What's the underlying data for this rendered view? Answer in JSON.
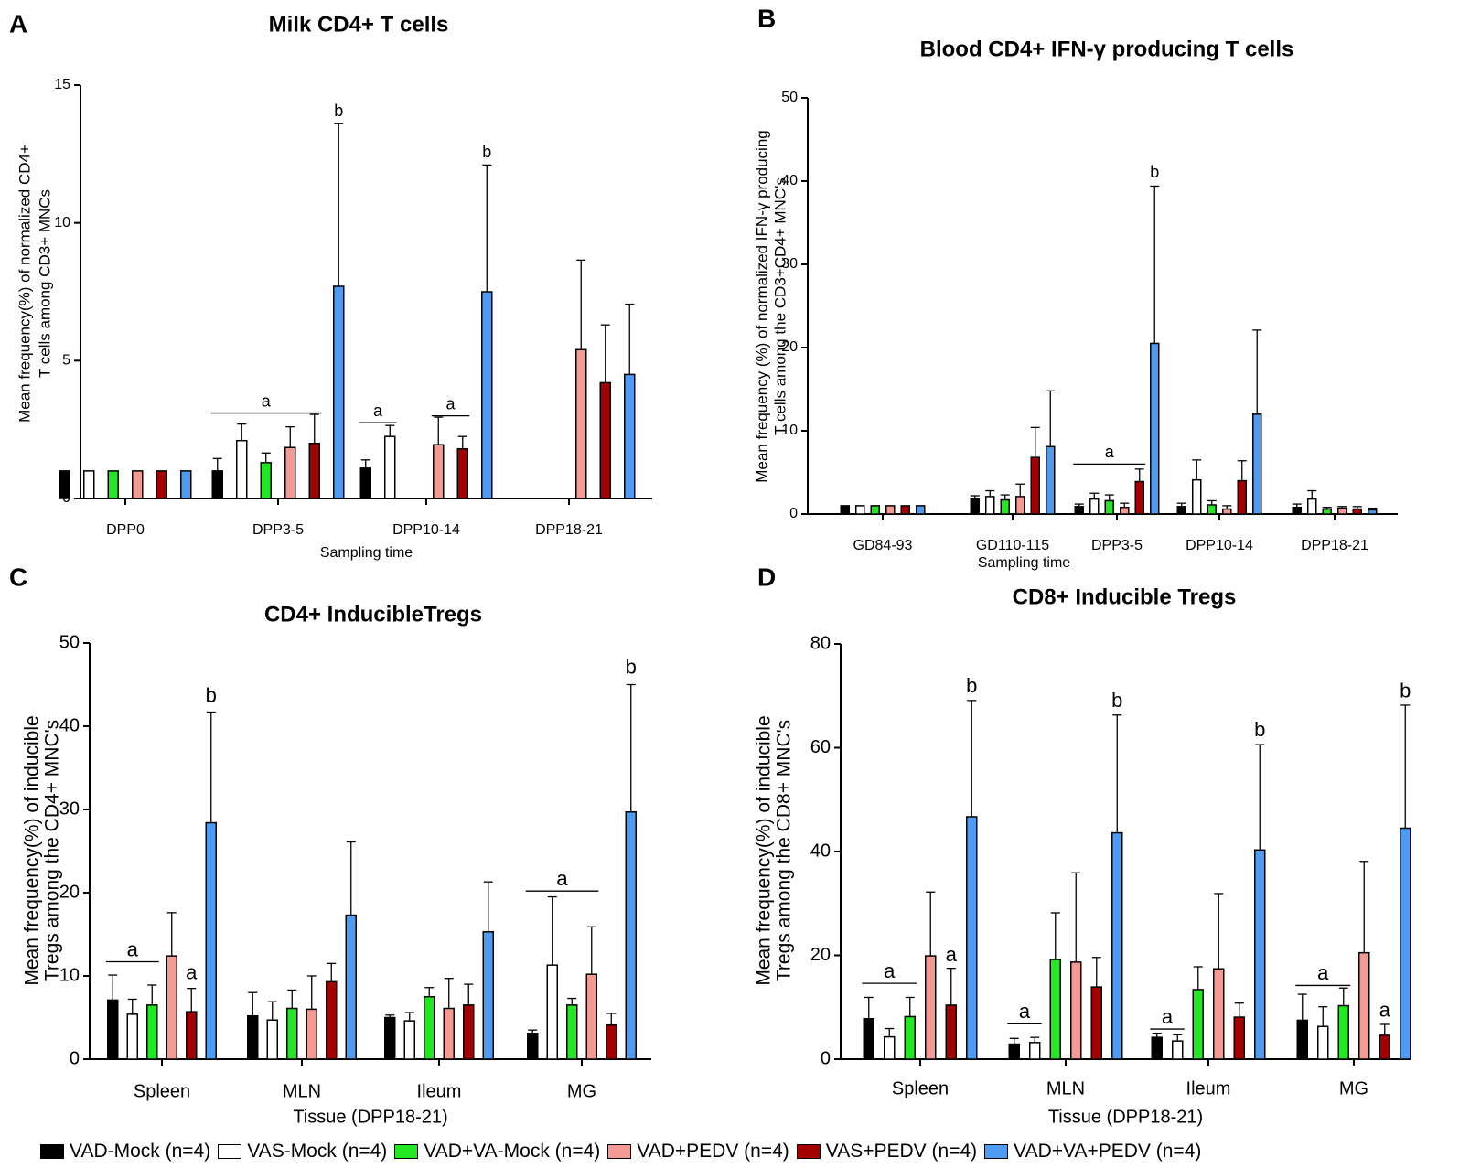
{
  "colors": {
    "VAD-Mock": "#000000",
    "VAS-Mock": "#ffffff",
    "VAD+VA-Mock": "#22e822",
    "VAD+PEDV": "#f49a94",
    "VAS+PEDV": "#a30000",
    "VAD+VA+PEDV": "#4d9bf2"
  },
  "legend": {
    "items": [
      {
        "label": "VAD-Mock (n=4)",
        "color": "#000000"
      },
      {
        "label": "VAS-Mock (n=4)",
        "color": "#ffffff"
      },
      {
        "label": "VAD+VA-Mock (n=4)",
        "color": "#22e822"
      },
      {
        "label": "VAD+PEDV (n=4)",
        "color": "#f49a94"
      },
      {
        "label": "VAS+PEDV (n=4)",
        "color": "#a30000"
      },
      {
        "label": "VAD+VA+PEDV (n=4)",
        "color": "#4d9bf2"
      }
    ]
  },
  "chart_data": [
    {
      "panel": "A",
      "type": "bar",
      "title": "Milk CD4+ T cells",
      "xlabel": "Sampling time",
      "ylabel": [
        "Mean frequency(%) of normalized CD4+",
        "T cells among CD3+ MNCs"
      ],
      "ylim": [
        0,
        15
      ],
      "yticks": [
        0,
        5,
        10,
        15
      ],
      "ytick_labels": [
        "0",
        "5",
        "10",
        "15"
      ],
      "categories": [
        "DPP0",
        "DPP3-5",
        "DPP10-14",
        "DPP18-21"
      ],
      "series": [
        {
          "name": "VAD-Mock",
          "values": [
            1.0,
            1.0,
            1.1,
            null
          ],
          "errors": [
            0,
            0.45,
            0.3,
            null
          ]
        },
        {
          "name": "VAS-Mock",
          "values": [
            1.0,
            2.1,
            2.25,
            null
          ],
          "errors": [
            0,
            0.6,
            0.4,
            null
          ]
        },
        {
          "name": "VAD+VA-Mock",
          "values": [
            1.0,
            1.3,
            null,
            null
          ],
          "errors": [
            0,
            0.35,
            null,
            null
          ]
        },
        {
          "name": "VAD+PEDV",
          "values": [
            1.0,
            1.85,
            1.95,
            5.4
          ],
          "errors": [
            0,
            0.75,
            1.0,
            3.25
          ]
        },
        {
          "name": "VAS+PEDV",
          "values": [
            1.0,
            2.0,
            1.8,
            4.2
          ],
          "errors": [
            0,
            1.05,
            0.45,
            2.1
          ]
        },
        {
          "name": "VAD+VA+PEDV",
          "values": [
            1.0,
            7.7,
            7.5,
            4.5
          ],
          "errors": [
            0,
            5.9,
            4.6,
            2.55
          ]
        }
      ],
      "annotations": [
        {
          "text": "b",
          "category": 1,
          "bar": 5,
          "y": 13.9
        },
        {
          "text": "b",
          "category": 2,
          "bar": 5,
          "y": 12.4
        },
        {
          "text": "a",
          "y": 3.1,
          "from": [
            1,
            0
          ],
          "to": [
            1,
            4
          ]
        },
        {
          "text": "a",
          "y": 2.75,
          "from": [
            2,
            0
          ],
          "to": [
            2,
            1
          ]
        },
        {
          "text": "a",
          "y": 3.0,
          "from": [
            2,
            3
          ],
          "to": [
            2,
            4
          ]
        }
      ]
    },
    {
      "panel": "B",
      "type": "bar",
      "title": "Blood CD4+ IFN-γ producing T cells",
      "xlabel": "Sampling time",
      "ylabel": [
        "Mean frequency (%) of normalized IFN-γ producing",
        "T cells among the CD3+CD4+ MNC's"
      ],
      "ylim": [
        0,
        50
      ],
      "yticks": [
        0,
        10,
        20,
        30,
        40,
        50
      ],
      "ytick_labels": [
        "0",
        "10",
        "20",
        "30",
        "40",
        "50"
      ],
      "categories": [
        "GD84-93",
        "GD110-115",
        "DPP3-5",
        "DPP10-14",
        "DPP18-21"
      ],
      "series": [
        {
          "name": "VAD-Mock",
          "values": [
            1.0,
            1.8,
            0.9,
            0.9,
            0.8
          ],
          "errors": [
            0,
            0.4,
            0.3,
            0.4,
            0.4
          ]
        },
        {
          "name": "VAS-Mock",
          "values": [
            1.0,
            2.1,
            1.8,
            4.1,
            1.8
          ],
          "errors": [
            0,
            0.7,
            0.7,
            2.4,
            1.0
          ]
        },
        {
          "name": "VAD+VA-Mock",
          "values": [
            1.0,
            1.7,
            1.6,
            1.1,
            0.6
          ],
          "errors": [
            0,
            0.6,
            0.7,
            0.5,
            0.2
          ]
        },
        {
          "name": "VAD+PEDV",
          "values": [
            1.0,
            2.1,
            0.8,
            0.6,
            0.7
          ],
          "errors": [
            0,
            1.5,
            0.5,
            0.4,
            0.2
          ]
        },
        {
          "name": "VAS+PEDV",
          "values": [
            1.0,
            6.8,
            3.9,
            4.0,
            0.6
          ],
          "errors": [
            0,
            3.6,
            1.5,
            2.4,
            0.3
          ]
        },
        {
          "name": "VAD+VA+PEDV",
          "values": [
            1.0,
            8.1,
            20.5,
            12.0,
            0.5
          ],
          "errors": [
            0,
            6.7,
            18.9,
            10.1,
            0.2
          ]
        }
      ],
      "annotations": [
        {
          "text": "b",
          "category": 2,
          "bar": 5,
          "y": 40.5
        },
        {
          "text": "a",
          "y": 6.0,
          "from": [
            2,
            0
          ],
          "to": [
            2,
            4
          ]
        }
      ]
    },
    {
      "panel": "C",
      "type": "bar",
      "title": "CD4+ InducibleTregs",
      "xlabel": "Tissue (DPP18-21)",
      "ylabel": [
        "Mean frequency(%) of inducible",
        "Tregs among the CD4+ MNC's"
      ],
      "ylim": [
        0,
        50
      ],
      "yticks": [
        0,
        10,
        20,
        30,
        40,
        50
      ],
      "ytick_labels": [
        "0",
        "10",
        "20",
        "30",
        "40",
        "50"
      ],
      "categories": [
        "Spleen",
        "MLN",
        "Ileum",
        "MG"
      ],
      "series": [
        {
          "name": "VAD-Mock",
          "values": [
            7.1,
            5.2,
            5.0,
            3.1
          ],
          "errors": [
            3.0,
            2.8,
            0.3,
            0.4
          ]
        },
        {
          "name": "VAS-Mock",
          "values": [
            5.4,
            4.7,
            4.6,
            11.3
          ],
          "errors": [
            1.8,
            2.2,
            1.0,
            8.2
          ]
        },
        {
          "name": "VAD+VA-Mock",
          "values": [
            6.5,
            6.1,
            7.5,
            6.5
          ],
          "errors": [
            2.4,
            2.2,
            1.1,
            0.8
          ]
        },
        {
          "name": "VAD+PEDV",
          "values": [
            12.4,
            6.0,
            6.1,
            10.2
          ],
          "errors": [
            5.2,
            4.0,
            3.6,
            5.7
          ]
        },
        {
          "name": "VAS+PEDV",
          "values": [
            5.7,
            9.3,
            6.5,
            4.1
          ],
          "errors": [
            2.8,
            2.2,
            2.5,
            1.4
          ]
        },
        {
          "name": "VAD+VA+PEDV",
          "values": [
            28.4,
            17.3,
            15.3,
            29.7
          ],
          "errors": [
            13.3,
            8.8,
            6.0,
            15.3
          ]
        }
      ],
      "annotations": [
        {
          "text": "b",
          "category": 0,
          "bar": 5,
          "y": 43.1
        },
        {
          "text": "b",
          "category": 3,
          "bar": 5,
          "y": 46.5
        },
        {
          "text": "a",
          "y": 11.7,
          "from": [
            0,
            0
          ],
          "to": [
            0,
            2
          ]
        },
        {
          "text": "a",
          "category": 0,
          "bar": 4,
          "y": 9.8
        },
        {
          "text": "a",
          "y": 20.2,
          "from": [
            3,
            0
          ],
          "to": [
            3,
            3
          ]
        }
      ]
    },
    {
      "panel": "D",
      "type": "bar",
      "title": "CD8+ Inducible Tregs",
      "xlabel": "Tissue (DPP18-21)",
      "ylabel": [
        "Mean frequency(%) of inducible",
        "Tregs among the CD8+ MNC's"
      ],
      "ylim": [
        0,
        80
      ],
      "yticks": [
        0,
        20,
        40,
        60,
        80
      ],
      "ytick_labels": [
        "0",
        "20",
        "40",
        "60",
        "80"
      ],
      "categories": [
        "Spleen",
        "MLN",
        "Ileum",
        "MG"
      ],
      "series": [
        {
          "name": "VAD-Mock",
          "values": [
            7.8,
            2.9,
            4.2,
            7.5
          ],
          "errors": [
            4.1,
            1.1,
            0.8,
            5.0
          ]
        },
        {
          "name": "VAS-Mock",
          "values": [
            4.3,
            3.2,
            3.5,
            6.3
          ],
          "errors": [
            1.6,
            1.0,
            1.2,
            3.8
          ]
        },
        {
          "name": "VAD+VA-Mock",
          "values": [
            8.2,
            19.2,
            13.4,
            10.3
          ],
          "errors": [
            3.7,
            9.0,
            4.4,
            3.4
          ]
        },
        {
          "name": "VAD+PEDV",
          "values": [
            19.9,
            18.7,
            17.4,
            20.5
          ],
          "errors": [
            12.3,
            17.2,
            14.5,
            17.6
          ]
        },
        {
          "name": "VAS+PEDV",
          "values": [
            10.4,
            13.9,
            8.1,
            4.6
          ],
          "errors": [
            7.1,
            5.7,
            2.7,
            2.1
          ]
        },
        {
          "name": "VAD+VA+PEDV",
          "values": [
            46.7,
            43.6,
            40.3,
            44.5
          ],
          "errors": [
            22.4,
            22.7,
            20.3,
            23.7
          ]
        }
      ],
      "annotations": [
        {
          "text": "b",
          "category": 0,
          "bar": 5,
          "y": 71.0
        },
        {
          "text": "b",
          "category": 1,
          "bar": 5,
          "y": 68.2
        },
        {
          "text": "b",
          "category": 2,
          "bar": 5,
          "y": 62.5
        },
        {
          "text": "b",
          "category": 3,
          "bar": 5,
          "y": 70.0
        },
        {
          "text": "a",
          "y": 14.6,
          "from": [
            0,
            0
          ],
          "to": [
            0,
            2
          ]
        },
        {
          "text": "a",
          "category": 0,
          "bar": 4,
          "y": 19.2
        },
        {
          "text": "a",
          "y": 6.8,
          "from": [
            1,
            0
          ],
          "to": [
            1,
            1
          ]
        },
        {
          "text": "a",
          "y": 5.8,
          "from": [
            2,
            0
          ],
          "to": [
            2,
            1
          ]
        },
        {
          "text": "a",
          "y": 14.2,
          "from": [
            3,
            0
          ],
          "to": [
            3,
            2
          ]
        },
        {
          "text": "a",
          "category": 3,
          "bar": 4,
          "y": 8.5
        }
      ]
    }
  ],
  "panel_labels": [
    "A",
    "B",
    "C",
    "D"
  ]
}
